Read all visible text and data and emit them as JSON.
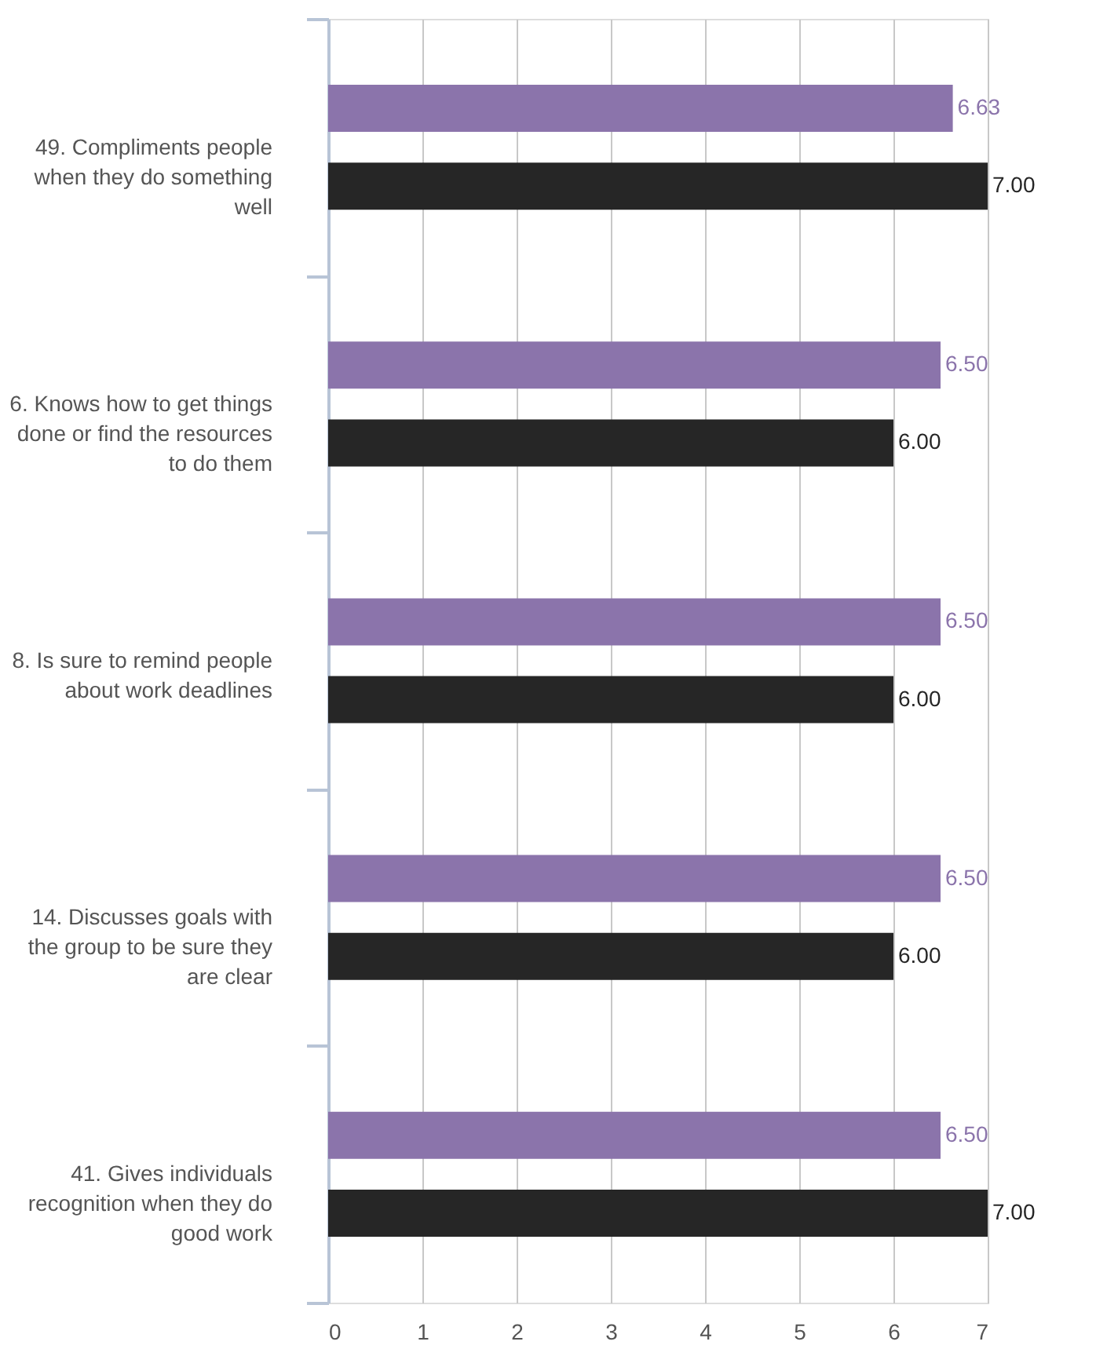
{
  "chart_data": {
    "type": "bar",
    "orientation": "horizontal",
    "categories": [
      "49. Compliments people\nwhen they do something\nwell",
      "6. Knows how to get things\ndone or find the resources\nto do them",
      "8. Is sure to remind people\nabout work deadlines",
      "14. Discusses goals with\nthe group to be sure they\nare clear",
      "41. Gives individuals\nrecognition when they do\ngood work"
    ],
    "series": [
      {
        "color": "#8b74ab",
        "values": [
          6.63,
          6.5,
          6.5,
          6.5,
          6.5
        ],
        "value_labels": [
          "6.63",
          "6.50",
          "6.50",
          "6.50",
          "6.50"
        ]
      },
      {
        "color": "#262626",
        "values": [
          7,
          6,
          6,
          6,
          7
        ],
        "value_labels": [
          "7.00",
          "6.00",
          "6.00",
          "6.00",
          "7.00"
        ]
      }
    ],
    "xlim": [
      0,
      7
    ],
    "xticks": [
      0,
      1,
      2,
      3,
      4,
      5,
      6,
      7
    ],
    "grid": "x",
    "legend": false
  }
}
